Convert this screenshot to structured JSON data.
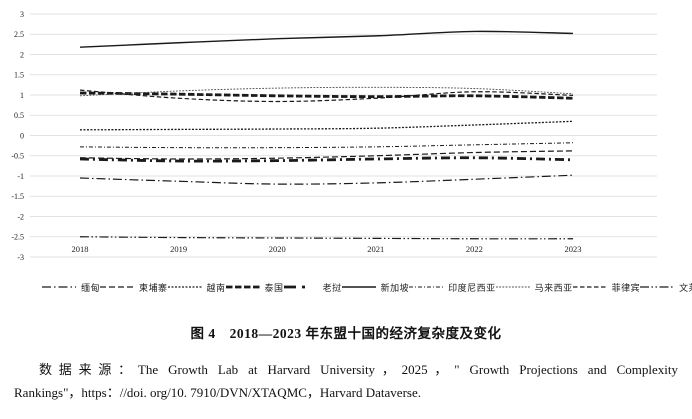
{
  "figure_caption": "图 4　2018—2023 年东盟十国的经济复杂度及变化",
  "source": {
    "line1": "数据来源：The Growth Lab at Harvard University，2025，\" Growth Projections and Complexity",
    "line2": "Rankings\"，https：//doi. org/10. 7910/DVN/XTAQMC，Harvard Dataverse."
  },
  "chart_data": {
    "type": "line",
    "title": "图 4　2018—2023 年东盟十国的经济复杂度及变化",
    "xlabel": "",
    "ylabel": "",
    "x": [
      "2018",
      "2019",
      "2020",
      "2021",
      "2022",
      "2023"
    ],
    "ylim": [
      -3,
      3
    ],
    "y_ticks": [
      3,
      2.5,
      2,
      1.5,
      1,
      0.5,
      0,
      -0.5,
      -1,
      -1.5,
      -2,
      -2.5,
      -3
    ],
    "grid": true,
    "legend_position": "bottom",
    "line_color": "#1a1a1a",
    "grid_color": "#d9d9d9",
    "series": [
      {
        "id": "myanmar",
        "name": "缅甸",
        "values": [
          -1.05,
          -1.13,
          -1.2,
          -1.17,
          -1.08,
          -0.98
        ],
        "dash": "9 3 1.5 3",
        "width": 1.2
      },
      {
        "id": "cambodia",
        "name": "柬埔寨",
        "values": [
          -0.55,
          -0.58,
          -0.56,
          -0.5,
          -0.42,
          -0.38
        ],
        "dash": "6 3",
        "width": 1.2
      },
      {
        "id": "vietnam",
        "name": "越南",
        "values": [
          0.14,
          0.15,
          0.16,
          0.18,
          0.26,
          0.35
        ],
        "dash": "2 1.5",
        "width": 1.3
      },
      {
        "id": "thailand",
        "name": "泰国",
        "values": [
          1.05,
          1.02,
          0.98,
          0.96,
          0.98,
          0.92
        ],
        "dash": "6.5 2.5",
        "width": 2.8
      },
      {
        "id": "laos",
        "name": "老挝",
        "values": [
          -0.58,
          -0.63,
          -0.62,
          -0.58,
          -0.55,
          -0.6
        ],
        "dash": "9 4 2 4",
        "width": 2.8,
        "legend_dash": "12 6 3 30"
      },
      {
        "id": "singapore",
        "name": "新加坡",
        "values": [
          2.18,
          2.29,
          2.39,
          2.46,
          2.57,
          2.52
        ],
        "dash": "",
        "width": 1.4
      },
      {
        "id": "indonesia",
        "name": "印度尼西亚",
        "values": [
          -0.28,
          -0.3,
          -0.3,
          -0.28,
          -0.23,
          -0.18
        ],
        "dash": "4 2 1 2",
        "width": 1.0
      },
      {
        "id": "malaysia",
        "name": "马来西亚",
        "values": [
          0.98,
          1.1,
          1.17,
          1.19,
          1.16,
          1.03
        ],
        "dash": "1.8 1.4",
        "width": 0.9,
        "color": "#4a4a4a"
      },
      {
        "id": "philippines",
        "name": "菲律宾",
        "values": [
          1.12,
          0.92,
          0.84,
          0.92,
          1.08,
          0.99
        ],
        "dash": "4.5 2.5",
        "width": 1.2
      },
      {
        "id": "brunei",
        "name": "文莱",
        "values": [
          -2.5,
          -2.52,
          -2.53,
          -2.54,
          -2.55,
          -2.55
        ],
        "dash": "9 2.5 1.5 2.5 1.5 2.5",
        "width": 1.2
      }
    ]
  }
}
